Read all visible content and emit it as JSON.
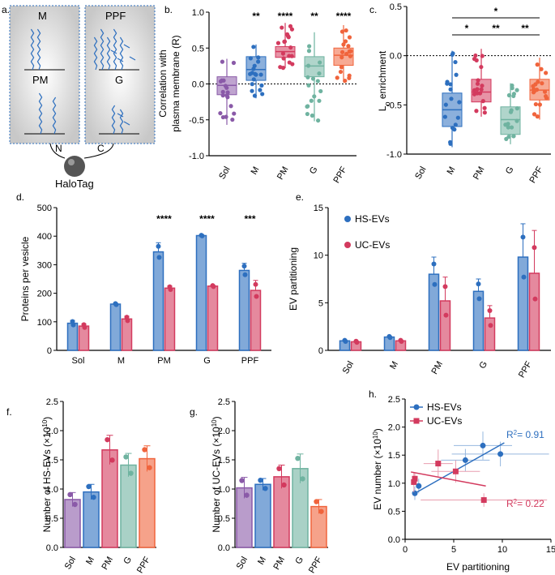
{
  "colors": {
    "Sol": "#8a5aa8",
    "M": "#2d6fbf",
    "PM": "#d33a5e",
    "G": "#6fb3a0",
    "PPF": "#f0643c",
    "hs": "#2d6fbf",
    "uc": "#d33a5e"
  },
  "panels": {
    "a": "a.",
    "b": "b.",
    "c": "c.",
    "d": "d.",
    "e": "e.",
    "f": "f.",
    "g": "g.",
    "h": "h."
  },
  "schematic": {
    "m": "M",
    "pm": "PM",
    "ppf": "PPF",
    "g": "G",
    "n": "N",
    "c": "C",
    "halotag": "HaloTag"
  },
  "chart_data": [
    {
      "id": "b",
      "type": "box",
      "ylabel": "Correlation with plasma membrane (R)",
      "ylabel_lines": [
        "Correlation with",
        "plasma membrane (R)"
      ],
      "categories": [
        "Sol",
        "M",
        "PM",
        "G",
        "PPF"
      ],
      "ylim": [
        -1,
        1
      ],
      "yticks": [
        "-1.0",
        "-0.5",
        "0.0",
        "0.5",
        "1.0"
      ],
      "boxes": [
        {
          "min": -0.57,
          "q1": -0.15,
          "med": -0.02,
          "q3": 0.1,
          "max": 0.35
        },
        {
          "min": -0.2,
          "q1": 0.05,
          "med": 0.2,
          "q3": 0.38,
          "max": 0.55
        },
        {
          "min": 0.22,
          "q1": 0.37,
          "med": 0.45,
          "q3": 0.52,
          "max": 0.85
        },
        {
          "min": -0.52,
          "q1": 0.1,
          "med": 0.25,
          "q3": 0.38,
          "max": 0.72
        },
        {
          "min": 0.02,
          "q1": 0.26,
          "med": 0.4,
          "q3": 0.5,
          "max": 0.82
        }
      ],
      "significance": [
        "",
        "**",
        "****",
        "**",
        "****"
      ]
    },
    {
      "id": "c",
      "type": "box",
      "ylabel": "Lo enrichment",
      "ylabel_main": "L",
      "ylabel_sub": "o",
      "ylabel_tail": " enrichment",
      "categories": [
        "Sol",
        "M",
        "PM",
        "G",
        "PPF"
      ],
      "ylim": [
        -1,
        0.5
      ],
      "yticks": [
        "-1.0",
        "-0.5",
        "0.0",
        "0.5"
      ],
      "boxes": [
        null,
        {
          "min": -0.93,
          "q1": -0.72,
          "med": -0.55,
          "q3": -0.38,
          "max": 0.05
        },
        {
          "min": -0.62,
          "q1": -0.47,
          "med": -0.37,
          "q3": -0.24,
          "max": 0.07
        },
        {
          "min": -0.9,
          "q1": -0.8,
          "med": -0.65,
          "q3": -0.52,
          "max": -0.28
        },
        {
          "min": -0.65,
          "q1": -0.45,
          "med": -0.35,
          "q3": -0.24,
          "max": -0.02
        }
      ],
      "brackets": [
        {
          "from": "M",
          "to": "PPF",
          "label": "*"
        },
        {
          "from": "M",
          "to": "PM",
          "label": "*"
        },
        {
          "from": "PM",
          "to": "G",
          "label": "**"
        },
        {
          "from": "G",
          "to": "PPF",
          "label": "**"
        }
      ]
    },
    {
      "id": "d",
      "type": "bar",
      "ylabel": "Proteins per vesicle",
      "categories": [
        "Sol",
        "M",
        "PM",
        "G",
        "PPF"
      ],
      "ylim": [
        0,
        500
      ],
      "yticks": [
        "0",
        "100",
        "200",
        "300",
        "400",
        "500"
      ],
      "series": [
        {
          "name": "HS-EVs",
          "values": [
            95,
            162,
            345,
            402,
            280
          ],
          "err": [
            10,
            3,
            32,
            2,
            25
          ]
        },
        {
          "name": "UC-EVs",
          "values": [
            85,
            110,
            218,
            225,
            210
          ],
          "err": [
            8,
            10,
            8,
            3,
            35
          ]
        }
      ],
      "significance": [
        "",
        "",
        "****",
        "****",
        "***"
      ]
    },
    {
      "id": "e",
      "type": "bar",
      "ylabel": "EV partitioning",
      "categories": [
        "Sol",
        "M",
        "PM",
        "G",
        "PPF"
      ],
      "ylim": [
        0,
        15
      ],
      "yticks": [
        "0",
        "5",
        "10",
        "15"
      ],
      "series": [
        {
          "name": "HS-EVs",
          "values": [
            1.0,
            1.4,
            8.0,
            6.2,
            9.8
          ],
          "err": [
            0.1,
            0.1,
            1.8,
            1.3,
            3.5
          ]
        },
        {
          "name": "UC-EVs",
          "values": [
            0.9,
            1.0,
            5.2,
            3.4,
            8.1
          ],
          "err": [
            0.1,
            0.1,
            2.5,
            1.3,
            4.5
          ]
        }
      ],
      "legend": [
        "HS-EVs",
        "UC-EVs"
      ]
    },
    {
      "id": "f",
      "type": "bar",
      "ylabel": "Number of HS-EVs (×10¹⁰)",
      "ylabel_main": "Number of HS-EVs (×10",
      "ylabel_sup": "10",
      "ylabel_tail": ")",
      "categories": [
        "Sol",
        "M",
        "PM",
        "G",
        "PPF"
      ],
      "ylim": [
        0,
        2.5
      ],
      "yticks": [
        "0.0",
        "0.5",
        "1.0",
        "1.5",
        "2.0",
        "2.5"
      ],
      "values": [
        0.82,
        0.95,
        1.67,
        1.41,
        1.52
      ],
      "err": [
        0.12,
        0.13,
        0.25,
        0.2,
        0.22
      ]
    },
    {
      "id": "g",
      "type": "bar",
      "ylabel": "Number of UC-EVs (×10¹⁰)",
      "ylabel_main": "Number of UC-EVs (×10",
      "ylabel_sup": "10",
      "ylabel_tail": ")",
      "categories": [
        "Sol",
        "M",
        "PM",
        "G",
        "PPF"
      ],
      "ylim": [
        0,
        2.5
      ],
      "yticks": [
        "0.0",
        "0.5",
        "1.0",
        "1.5",
        "2.0",
        "2.5"
      ],
      "values": [
        1.02,
        1.08,
        1.21,
        1.35,
        0.7
      ],
      "err": [
        0.18,
        0.1,
        0.2,
        0.25,
        0.12
      ]
    },
    {
      "id": "h",
      "type": "scatter",
      "xlabel": "EV partitioning",
      "ylabel": "EV number (×10¹⁰)",
      "ylabel_main": "EV number  (×10",
      "ylabel_sup": "10",
      "ylabel_tail": ")",
      "xlim": [
        0,
        15
      ],
      "ylim": [
        0,
        2.5
      ],
      "xticks": [
        "0",
        "5",
        "10",
        "15"
      ],
      "yticks": [
        "0.0",
        "0.5",
        "1.0",
        "1.5",
        "2.0",
        "2.5"
      ],
      "series": [
        {
          "name": "HS-EVs",
          "r2": "R²= 0.91",
          "r2_main": "R",
          "r2_sup": "2",
          "r2_tail": "= 0.91",
          "points": [
            {
              "x": 1.0,
              "y": 0.82,
              "xe": 0.2,
              "ye": 0.12
            },
            {
              "x": 1.4,
              "y": 0.95,
              "xe": 0.2,
              "ye": 0.13
            },
            {
              "x": 8.0,
              "y": 1.67,
              "xe": 3.0,
              "ye": 0.25
            },
            {
              "x": 6.2,
              "y": 1.41,
              "xe": 2.5,
              "ye": 0.2
            },
            {
              "x": 9.8,
              "y": 1.52,
              "xe": 5.0,
              "ye": 0.22
            }
          ],
          "fit": [
            [
              0.8,
              0.8
            ],
            [
              10.2,
              1.72
            ]
          ]
        },
        {
          "name": "UC-EVs",
          "r2": "R²= 0.22",
          "r2_main": "R",
          "r2_sup": "2",
          "r2_tail": "= 0.22",
          "points": [
            {
              "x": 0.9,
              "y": 1.02,
              "xe": 0.2,
              "ye": 0.18
            },
            {
              "x": 1.0,
              "y": 1.08,
              "xe": 0.2,
              "ye": 0.1
            },
            {
              "x": 5.2,
              "y": 1.21,
              "xe": 2.5,
              "ye": 0.2
            },
            {
              "x": 3.4,
              "y": 1.35,
              "xe": 1.5,
              "ye": 0.25
            },
            {
              "x": 8.1,
              "y": 0.7,
              "xe": 6.5,
              "ye": 0.12
            }
          ],
          "fit": [
            [
              0.6,
              1.2
            ],
            [
              8.3,
              0.95
            ]
          ]
        }
      ]
    }
  ]
}
